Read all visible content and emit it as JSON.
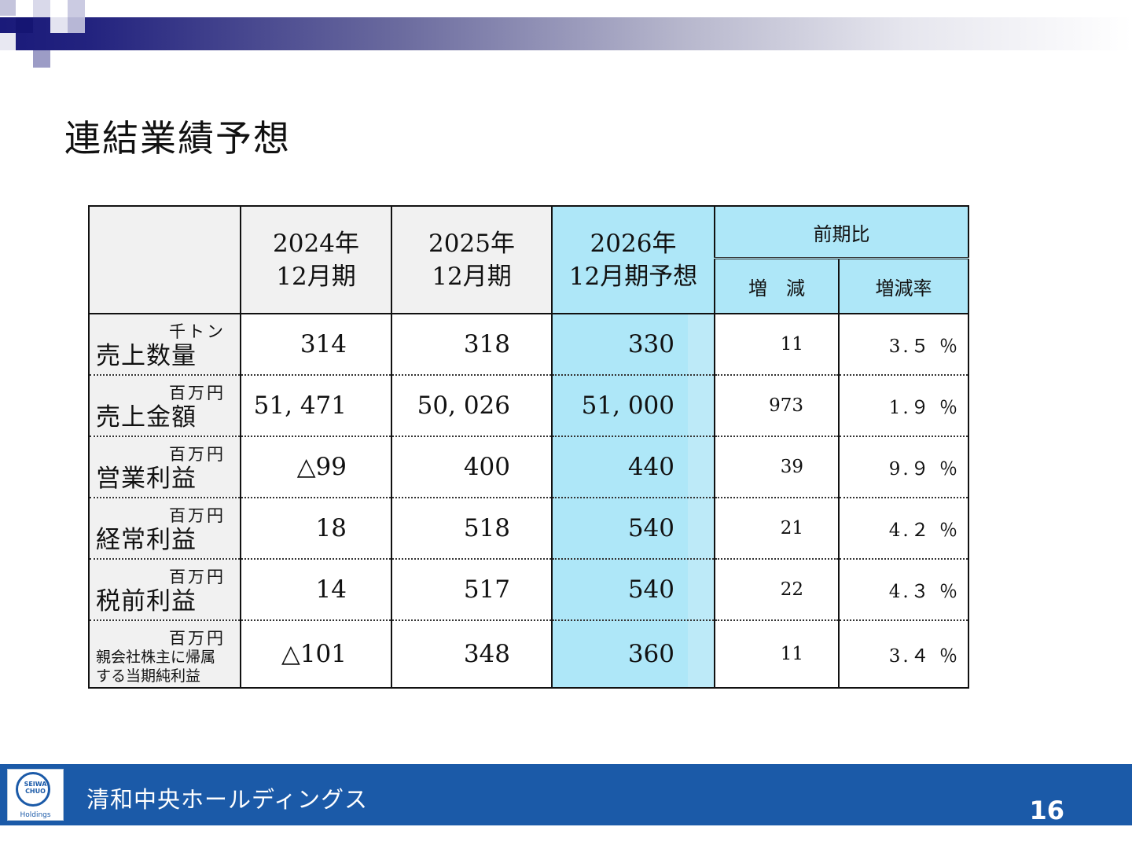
{
  "title": "連結業績予想",
  "table": {
    "headers": {
      "y2024": [
        "2024年",
        "12月期"
      ],
      "y2025": [
        "2025年",
        "12月期"
      ],
      "y2026": [
        "2026年",
        "12月期予想"
      ],
      "group": "前期比",
      "diff": "増　減",
      "rate": "増減率"
    },
    "rows": [
      {
        "unit": "千トン",
        "label": "売上数量",
        "y2024": "314",
        "y2025": "318",
        "y2026": "330",
        "diff": "11",
        "rate": "3.５ ％"
      },
      {
        "unit": "百万円",
        "label": "売上金額",
        "y2024": "51, 471",
        "y2025": "50, 026",
        "y2026": "51, 000",
        "diff": "973",
        "rate": "1.９ ％"
      },
      {
        "unit": "百万円",
        "label": "営業利益",
        "y2024": "△99",
        "y2025": "400",
        "y2026": "440",
        "diff": "39",
        "rate": "9.９ ％"
      },
      {
        "unit": "百万円",
        "label": "経常利益",
        "y2024": "18",
        "y2025": "518",
        "y2026": "540",
        "diff": "21",
        "rate": "4.２ ％"
      },
      {
        "unit": "百万円",
        "label": "税前利益",
        "y2024": "14",
        "y2025": "517",
        "y2026": "540",
        "diff": "22",
        "rate": "4.３ ％"
      },
      {
        "unit": "百万円",
        "label_lines": [
          "親会社株主に帰属",
          "する当期純利益"
        ],
        "y2024": "△101",
        "y2025": "348",
        "y2026": "360",
        "diff": "11",
        "rate": "3.４ ％"
      }
    ]
  },
  "footer": {
    "company": "清和中央ホールディングス",
    "logo_text": [
      "SEIWA",
      "CHUO"
    ],
    "logo_sub": "Holdings",
    "page_number": "16"
  },
  "colors": {
    "forecast_bg": "#aee7f8",
    "footer_bg": "#1b5aa8",
    "header_bg": "#f1f1f1"
  }
}
